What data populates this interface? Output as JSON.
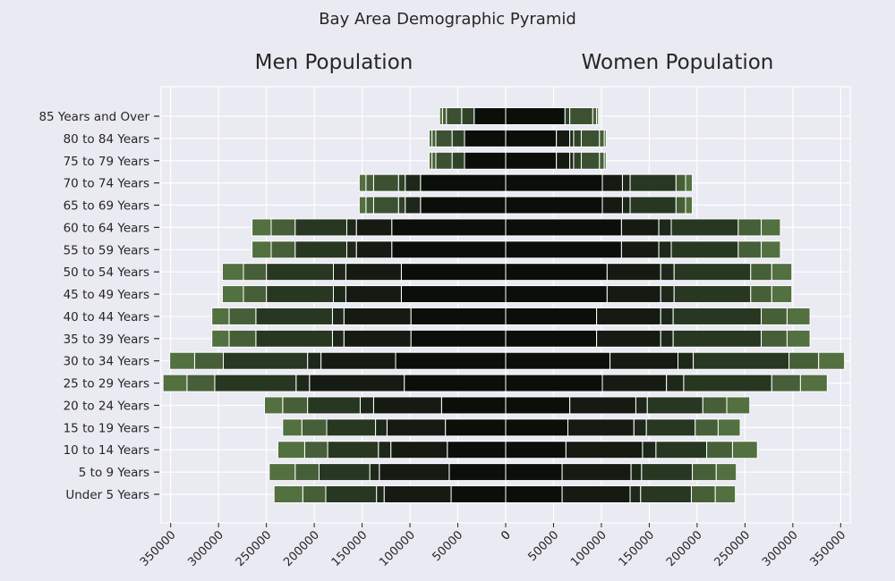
{
  "chart_data": {
    "type": "bar",
    "title": "Bay Area Demographic Pyramid",
    "left_label": "Men Population",
    "right_label": "Women Population",
    "categories": [
      "Under 5 Years",
      "5 to 9 Years",
      "10 to 14 Years",
      "15 to 19 Years",
      "20 to 24 Years",
      "25 to 29 Years",
      "30 to 34 Years",
      "35 to 39 Years",
      "40 to 44 Years",
      "45 to 49 Years",
      "50 to 54 Years",
      "55 to 59 Years",
      "60 to 64 Years",
      "65 to 69 Years",
      "70 to 74 Years",
      "75 to 79 Years",
      "80 to 84 Years",
      "85 Years and Over"
    ],
    "x_ticks": [
      "350000",
      "300000",
      "250000",
      "200000",
      "150000",
      "100000",
      "50000",
      "0",
      "0",
      "50000",
      "100000",
      "150000",
      "200000",
      "250000",
      "300000",
      "350000"
    ],
    "xlim": [
      -360000,
      360000
    ],
    "series_colors": [
      "#0b0f09",
      "#151b13",
      "#1e281a",
      "#273721",
      "#304329",
      "#3b5131",
      "#475f38",
      "#537040",
      "#5d7a47"
    ],
    "series": [
      {
        "values_men": [
          57000,
          59000,
          61000,
          63000,
          67000,
          106000,
          115000,
          99000,
          99000,
          109000,
          109000,
          119000,
          119000,
          89000,
          89000,
          43000,
          43000,
          33000
        ],
        "values_women": [
          59000,
          59000,
          63000,
          65000,
          67000,
          101000,
          109000,
          95000,
          95000,
          106000,
          106000,
          121000,
          121000,
          101000,
          101000,
          53000,
          53000,
          62000
        ]
      },
      {
        "values_men": [
          70000,
          73000,
          59000,
          61000,
          71000,
          99000,
          78000,
          70000,
          70000,
          58000,
          58000,
          37000,
          37000,
          0,
          0,
          0,
          0,
          0
        ],
        "values_women": [
          71000,
          72000,
          80000,
          69000,
          69000,
          67000,
          71000,
          67000,
          67000,
          56000,
          56000,
          39000,
          39000,
          21000,
          21000,
          14000,
          14000,
          0
        ]
      },
      {
        "values_men": [
          8000,
          10000,
          13000,
          12000,
          14000,
          14000,
          14000,
          12000,
          12000,
          13000,
          13000,
          10000,
          10000,
          16000,
          16000,
          0,
          0,
          0
        ],
        "values_women": [
          11000,
          11000,
          14000,
          13000,
          12000,
          18000,
          16000,
          13000,
          13000,
          14000,
          14000,
          13000,
          13000,
          8000,
          8000,
          4000,
          4000,
          0
        ]
      },
      {
        "values_men": [
          53000,
          53000,
          53000,
          51000,
          55000,
          85000,
          88000,
          80000,
          80000,
          70000,
          70000,
          54000,
          54000,
          0,
          0,
          0,
          0,
          0
        ],
        "values_women": [
          53000,
          53000,
          53000,
          51000,
          58000,
          92000,
          100000,
          92000,
          92000,
          80000,
          80000,
          70000,
          70000,
          48000,
          48000,
          0,
          0,
          0
        ]
      },
      {
        "values_men": [
          0,
          0,
          0,
          0,
          0,
          0,
          0,
          0,
          0,
          0,
          0,
          0,
          0,
          7000,
          7000,
          13000,
          13000,
          13000
        ],
        "values_women": [
          0,
          0,
          0,
          0,
          0,
          0,
          0,
          0,
          0,
          0,
          0,
          0,
          0,
          0,
          0,
          8000,
          8000,
          5000
        ]
      },
      {
        "values_men": [
          0,
          0,
          0,
          0,
          0,
          0,
          0,
          0,
          0,
          0,
          0,
          0,
          0,
          26000,
          26000,
          17000,
          17000,
          16000
        ],
        "values_women": [
          0,
          0,
          0,
          0,
          0,
          0,
          0,
          0,
          0,
          0,
          0,
          0,
          0,
          0,
          0,
          19000,
          19000,
          24000
        ]
      },
      {
        "values_men": [
          24000,
          25000,
          24000,
          26000,
          26000,
          29000,
          30000,
          28000,
          28000,
          24000,
          24000,
          25000,
          25000,
          8000,
          8000,
          4000,
          4000,
          4000
        ],
        "values_women": [
          25000,
          25000,
          27000,
          24000,
          25000,
          30000,
          31000,
          27000,
          27000,
          22000,
          22000,
          24000,
          24000,
          10000,
          10000,
          5000,
          5000,
          4000
        ]
      },
      {
        "values_men": [
          30000,
          27000,
          28000,
          20000,
          19000,
          25000,
          26000,
          18000,
          18000,
          22000,
          22000,
          20000,
          20000,
          7000,
          7000,
          3000,
          3000,
          3000
        ],
        "values_women": [
          21000,
          21000,
          26000,
          23000,
          24000,
          28000,
          27000,
          24000,
          24000,
          21000,
          21000,
          20000,
          20000,
          7000,
          7000,
          2000,
          2000,
          2000
        ]
      },
      {
        "values_men": [
          0,
          0,
          0,
          0,
          0,
          0,
          0,
          0,
          0,
          0,
          0,
          0,
          0,
          0,
          0,
          0,
          0,
          0
        ],
        "values_women": [
          0,
          0,
          0,
          0,
          0,
          0,
          0,
          0,
          0,
          0,
          0,
          0,
          0,
          0,
          0,
          0,
          0,
          0
        ]
      }
    ]
  }
}
